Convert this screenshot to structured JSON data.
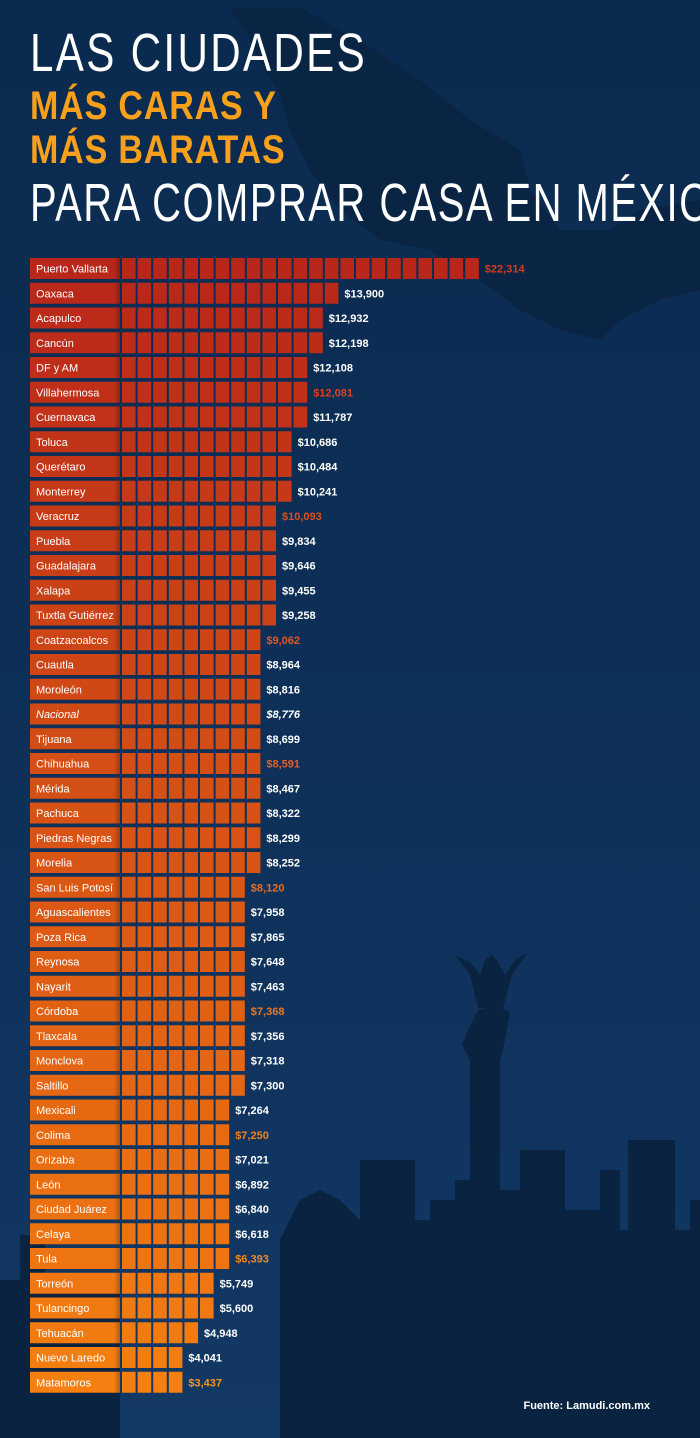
{
  "title": {
    "line1": "LAS CIUDADES",
    "line2": "MÁS CARAS Y",
    "line3": "MÁS BARATAS",
    "line4": "PARA COMPRAR CASA EN MÉXICO"
  },
  "source": "Fuente: Lamudi.com.mx",
  "colors": {
    "background": "#0c2a4e",
    "silhouette": "#0a2340",
    "bar_top": "#b9261a",
    "bar_bottom": "#f57f10",
    "value_text": "#ffffff",
    "highlight_top": "#d8391f",
    "highlight_bottom": "#f7941d"
  },
  "chart_data": {
    "type": "bar",
    "orientation": "horizontal",
    "categories": [
      "Puerto Vallarta",
      "Oaxaca",
      "Acapulco",
      "Cancún",
      "DF y AM",
      "Villahermosa",
      "Cuernavaca",
      "Toluca",
      "Querétaro",
      "Monterrey",
      "Veracruz",
      "Puebla",
      "Guadalajara",
      "Xalapa",
      "Tuxtla Gutiérrez",
      "Coatzacoalcos",
      "Cuautla",
      "Moroleón",
      "Nacional",
      "Tijuana",
      "Chihuahua",
      "Mérida",
      "Pachuca",
      "Piedras Negras",
      "Morelia",
      "San Luis Potosí",
      "Aguascalientes",
      "Poza Rica",
      "Reynosa",
      "Nayarit",
      "Córdoba",
      "Tlaxcala",
      "Monclova",
      "Saltillo",
      "Mexicali",
      "Colima",
      "Orizaba",
      "León",
      "Ciudad Juárez",
      "Celaya",
      "Tula",
      "Torreón",
      "Tulancingo",
      "Tehuacán",
      "Nuevo Laredo",
      "Matamoros"
    ],
    "values": [
      22314,
      13900,
      12932,
      12198,
      12108,
      12081,
      11787,
      10686,
      10484,
      10241,
      10093,
      9834,
      9646,
      9455,
      9258,
      9062,
      8964,
      8816,
      8776,
      8699,
      8591,
      8467,
      8322,
      8299,
      8252,
      8120,
      7958,
      7865,
      7648,
      7463,
      7368,
      7356,
      7318,
      7300,
      7264,
      7250,
      7021,
      6892,
      6840,
      6618,
      6393,
      5749,
      5600,
      4948,
      4041,
      3437
    ],
    "value_labels": [
      "$22,314",
      "$13,900",
      "$12,932",
      "$12,198",
      "$12,108",
      "$12,081",
      "$11,787",
      "$10,686",
      "$10,484",
      "$10,241",
      "$10,093",
      "$9,834",
      "$9,646",
      "$9,455",
      "$9,258",
      "$9,062",
      "$8,964",
      "$8,816",
      "$8,776",
      "$8,699",
      "$8,591",
      "$8,467",
      "$8,322",
      "$8,299",
      "$8,252",
      "$8,120",
      "$7,958",
      "$7,865",
      "$7,648",
      "$7,463",
      "$7,368",
      "$7,356",
      "$7,318",
      "$7,300",
      "$7,264",
      "$7,250",
      "$7,021",
      "$6,892",
      "$6,840",
      "$6,618",
      "$6,393",
      "$5,749",
      "$5,600",
      "$4,948",
      "$4,041",
      "$3,437"
    ],
    "highlighted": [
      0,
      5,
      10,
      15,
      20,
      25,
      30,
      35,
      40,
      45
    ],
    "italic": [
      18
    ],
    "xlim": [
      0,
      22314
    ]
  }
}
